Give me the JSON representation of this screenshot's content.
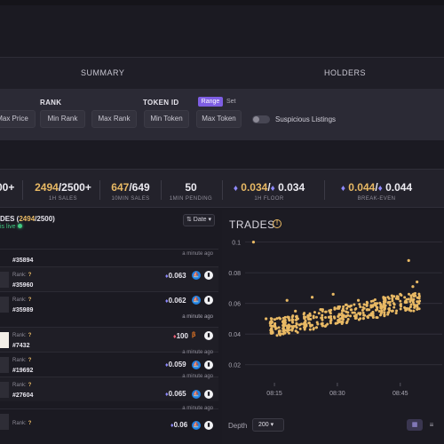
{
  "tabs": {
    "summary": "SUMMARY",
    "holders": "HOLDERS"
  },
  "filters": {
    "rank_label": "RANK",
    "token_id_label": "TOKEN ID",
    "mode_range": "Range",
    "mode_set": "Set",
    "max_price": "Max Price",
    "min_rank": "Min Rank",
    "max_rank": "Max Rank",
    "min_token": "Min Token",
    "max_token": "Max Token",
    "suspicious": "Suspicious Listings"
  },
  "stats": {
    "s0_val": "00+",
    "s1_hl": "2494",
    "s1_rest": "/2500+",
    "s1_lbl": "1H SALES",
    "s2_hl": "647",
    "s2_rest": "/649",
    "s2_lbl": "10MIN SALES",
    "s3_val": "50",
    "s3_lbl": "1MIN PENDING",
    "s4_hl": "0.034",
    "s4_rest": "/",
    "s4_val2": "0.034",
    "s4_lbl": "1H FLOOR",
    "s5_hl": "0.044",
    "s5_rest": "/",
    "s5_val2": "0.044",
    "s5_lbl": "BREAK-EVEN",
    "eth_symbol": "♦"
  },
  "trades_list": {
    "title_prefix": "DES (",
    "title_hl": "2494",
    "title_suffix": "/2500)",
    "live": "is live",
    "sort": "Date",
    "rank_label": "Rank:",
    "rank_value": "?",
    "rows": [
      {
        "id": "#35894",
        "time": "a minute ago"
      },
      {
        "id": "#35960",
        "price": "0.063",
        "time": "a minute ago",
        "market": "os"
      },
      {
        "id": "#35989",
        "price": "0.062",
        "time": "a minute ago",
        "market": "os"
      },
      {
        "id": "#7432",
        "price": "100",
        "time": "a minute ago",
        "market": "blur"
      },
      {
        "id": "#19692",
        "price": "0.059",
        "time": "a minute ago",
        "market": "os"
      },
      {
        "id": "#27604",
        "price": "0.065",
        "time": "a minute ago",
        "market": "os"
      },
      {
        "id": "",
        "price": "0.06",
        "time": "",
        "market": "os"
      }
    ]
  },
  "trades_chart": {
    "title": "TRADES",
    "depth_label": "Depth",
    "depth_value": "200"
  },
  "chart_data": {
    "type": "scatter",
    "title": "TRADES",
    "xlabel": "",
    "ylabel": "",
    "x_ticks": [
      "08:15",
      "08:30",
      "08:45",
      "09:"
    ],
    "y_ticks": [
      "0.1",
      "0.08",
      "0.06",
      "0.04",
      "0.02"
    ],
    "ylim": [
      0.01,
      0.105
    ],
    "grid": true,
    "point_color": "#e8b964",
    "points": [
      {
        "x": "08:10",
        "y": 0.1
      },
      {
        "x": "08:13",
        "y": 0.05
      },
      {
        "x": "08:14",
        "y": 0.047
      },
      {
        "x": "08:15",
        "y": 0.045
      },
      {
        "x": "08:17",
        "y": 0.048
      },
      {
        "x": "08:18",
        "y": 0.062
      },
      {
        "x": "08:20",
        "y": 0.055
      },
      {
        "x": "08:21",
        "y": 0.046
      },
      {
        "x": "08:23",
        "y": 0.052
      },
      {
        "x": "08:24",
        "y": 0.064
      },
      {
        "x": "08:26",
        "y": 0.056
      },
      {
        "x": "08:28",
        "y": 0.051
      },
      {
        "x": "08:29",
        "y": 0.066
      },
      {
        "x": "08:31",
        "y": 0.048
      },
      {
        "x": "08:33",
        "y": 0.058
      },
      {
        "x": "08:35",
        "y": 0.062
      },
      {
        "x": "08:37",
        "y": 0.059
      },
      {
        "x": "08:39",
        "y": 0.06
      },
      {
        "x": "08:41",
        "y": 0.064
      },
      {
        "x": "08:43",
        "y": 0.065
      },
      {
        "x": "08:45",
        "y": 0.066
      },
      {
        "x": "08:47",
        "y": 0.088
      },
      {
        "x": "08:48",
        "y": 0.071
      },
      {
        "x": "08:49",
        "y": 0.074
      }
    ]
  }
}
